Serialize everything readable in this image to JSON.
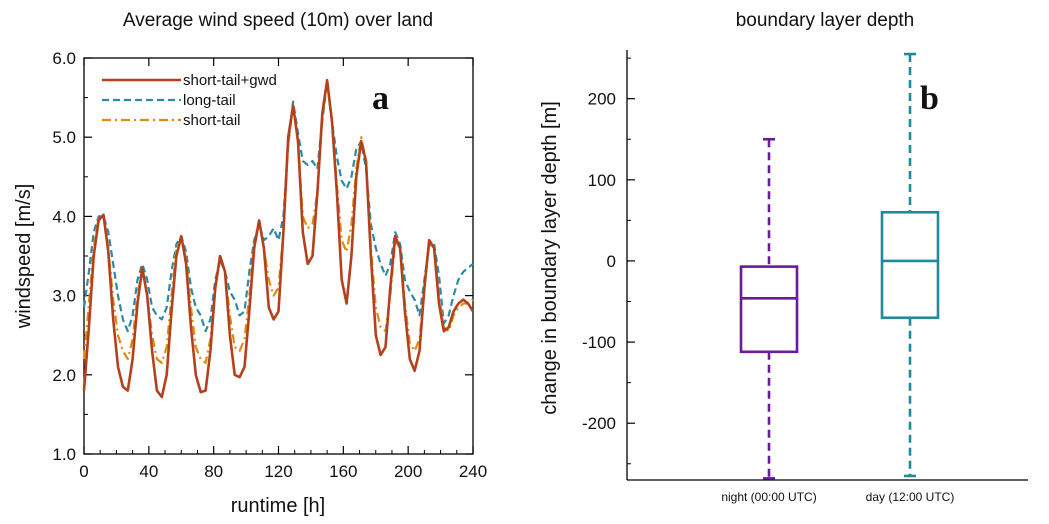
{
  "chart_data": [
    {
      "type": "line",
      "panel_label": "a",
      "title": "Average wind speed (10m) over land",
      "xlabel": "runtime [h]",
      "ylabel": "windspeed [m/s]",
      "xlim": [
        0,
        240
      ],
      "ylim": [
        1.0,
        6.0
      ],
      "xticks": [
        0,
        40,
        80,
        120,
        160,
        200,
        240
      ],
      "yticks": [
        1.0,
        2.0,
        3.0,
        4.0,
        5.0,
        6.0
      ],
      "ytick_labels": [
        "1.0",
        "2.0",
        "3.0",
        "4.0",
        "5.0",
        "6.0"
      ],
      "legend_position": "top-left",
      "series": [
        {
          "name": "short-tail+gwd",
          "color": "#b5401c",
          "style": "solid",
          "x": [
            0,
            3,
            6,
            9,
            12,
            15,
            18,
            21,
            24,
            27,
            30,
            33,
            36,
            39,
            42,
            45,
            48,
            51,
            54,
            57,
            60,
            63,
            66,
            69,
            72,
            75,
            78,
            81,
            84,
            87,
            90,
            93,
            96,
            99,
            102,
            105,
            108,
            111,
            114,
            117,
            120,
            123,
            126,
            129,
            132,
            135,
            138,
            141,
            144,
            147,
            150,
            153,
            156,
            159,
            162,
            165,
            168,
            171,
            174,
            177,
            180,
            183,
            186,
            189,
            192,
            195,
            198,
            201,
            204,
            207,
            210,
            213,
            216,
            219,
            222,
            225,
            228,
            231,
            234,
            237,
            240
          ],
          "y": [
            1.8,
            2.6,
            3.5,
            3.95,
            4.02,
            3.55,
            2.7,
            2.1,
            1.85,
            1.8,
            2.2,
            2.9,
            3.35,
            3.0,
            2.3,
            1.8,
            1.72,
            2.0,
            2.8,
            3.5,
            3.75,
            3.4,
            2.6,
            2.0,
            1.78,
            1.8,
            2.3,
            3.1,
            3.5,
            3.3,
            2.5,
            2.0,
            1.97,
            2.1,
            2.8,
            3.6,
            3.95,
            3.6,
            2.85,
            2.7,
            2.8,
            3.8,
            5.0,
            5.4,
            4.95,
            3.8,
            3.4,
            3.5,
            4.3,
            5.3,
            5.72,
            5.2,
            4.3,
            3.2,
            2.9,
            3.5,
            4.5,
            4.95,
            4.7,
            3.5,
            2.5,
            2.25,
            2.35,
            3.1,
            3.75,
            3.6,
            2.8,
            2.2,
            2.05,
            2.3,
            3.1,
            3.7,
            3.6,
            2.9,
            2.55,
            2.6,
            2.8,
            2.9,
            2.95,
            2.9,
            2.8
          ]
        },
        {
          "name": "long-tail",
          "color": "#2a8aa8",
          "style": "dashed",
          "x": [
            0,
            3,
            6,
            9,
            12,
            15,
            18,
            21,
            24,
            27,
            30,
            33,
            36,
            39,
            42,
            45,
            48,
            51,
            54,
            57,
            60,
            63,
            66,
            69,
            72,
            75,
            78,
            81,
            84,
            87,
            90,
            93,
            96,
            99,
            102,
            105,
            108,
            111,
            114,
            117,
            120,
            123,
            126,
            129,
            132,
            135,
            138,
            141,
            144,
            147,
            150,
            153,
            156,
            159,
            162,
            165,
            168,
            171,
            174,
            177,
            180,
            183,
            186,
            189,
            192,
            195,
            198,
            201,
            204,
            207,
            210,
            213,
            216,
            219,
            222,
            225,
            228,
            231,
            234,
            237,
            240
          ],
          "y": [
            2.85,
            3.3,
            3.8,
            4.0,
            4.0,
            3.8,
            3.4,
            3.0,
            2.7,
            2.55,
            2.75,
            3.2,
            3.4,
            3.2,
            2.85,
            2.75,
            2.7,
            2.85,
            3.3,
            3.65,
            3.75,
            3.55,
            3.1,
            2.85,
            2.75,
            2.55,
            2.7,
            3.2,
            3.45,
            3.3,
            3.05,
            2.95,
            2.75,
            2.8,
            3.3,
            3.7,
            3.9,
            3.7,
            3.75,
            3.85,
            3.7,
            4.0,
            4.9,
            5.45,
            5.05,
            4.7,
            4.65,
            4.7,
            4.6,
            5.2,
            5.7,
            5.2,
            4.75,
            4.45,
            4.35,
            4.5,
            4.85,
            4.95,
            4.6,
            3.9,
            3.6,
            3.4,
            3.25,
            3.4,
            3.8,
            3.65,
            3.2,
            3.05,
            2.95,
            2.75,
            3.2,
            3.65,
            3.65,
            3.25,
            2.65,
            2.75,
            3.0,
            3.2,
            3.3,
            3.35,
            3.4
          ]
        },
        {
          "name": "short-tail",
          "color": "#e08a10",
          "style": "dashdot",
          "x": [
            0,
            3,
            6,
            9,
            12,
            15,
            18,
            21,
            24,
            27,
            30,
            33,
            36,
            39,
            42,
            45,
            48,
            51,
            54,
            57,
            60,
            63,
            66,
            69,
            72,
            75,
            78,
            81,
            84,
            87,
            90,
            93,
            96,
            99,
            102,
            105,
            108,
            111,
            114,
            117,
            120,
            123,
            126,
            129,
            132,
            135,
            138,
            141,
            144,
            147,
            150,
            153,
            156,
            159,
            162,
            165,
            168,
            171,
            174,
            177,
            180,
            183,
            186,
            189,
            192,
            195,
            198,
            201,
            204,
            207,
            210,
            213,
            216,
            219,
            222,
            225,
            228,
            231,
            234,
            237,
            240
          ],
          "y": [
            2.2,
            2.9,
            3.6,
            3.98,
            4.0,
            3.6,
            2.95,
            2.5,
            2.3,
            2.2,
            2.45,
            3.0,
            3.35,
            3.0,
            2.5,
            2.2,
            2.15,
            2.35,
            3.0,
            3.6,
            3.75,
            3.45,
            2.85,
            2.35,
            2.2,
            2.15,
            2.45,
            3.1,
            3.5,
            3.3,
            2.75,
            2.35,
            2.3,
            2.45,
            3.0,
            3.65,
            3.95,
            3.6,
            3.2,
            3.0,
            3.1,
            3.8,
            4.9,
            5.4,
            4.95,
            4.0,
            3.85,
            3.9,
            4.3,
            5.25,
            5.7,
            5.2,
            4.4,
            3.7,
            3.55,
            3.9,
            4.6,
            5.0,
            4.7,
            3.6,
            2.85,
            2.6,
            2.55,
            3.0,
            3.7,
            3.6,
            2.9,
            2.4,
            2.3,
            2.45,
            3.1,
            3.65,
            3.6,
            3.0,
            2.6,
            2.55,
            2.75,
            2.85,
            2.9,
            2.9,
            2.95
          ]
        }
      ]
    },
    {
      "type": "box",
      "panel_label": "b",
      "title": "boundary layer depth",
      "xlabel": "",
      "ylabel": "change in boundary layer depth [m]",
      "ylim": [
        -270,
        260
      ],
      "yticks": [
        -200,
        -100,
        0,
        100,
        200
      ],
      "categories": [
        "night (00:00 UTC)",
        "day (12:00 UTC)"
      ],
      "boxes": [
        {
          "label": "night (00:00 UTC)",
          "color": "#6a1b9a",
          "min": -268,
          "q1": -112,
          "median": -46,
          "q3": -7,
          "max": 150
        },
        {
          "label": "day (12:00 UTC)",
          "color": "#1e8a9a",
          "min": -265,
          "q1": -70,
          "median": 0,
          "q3": 60,
          "max": 255
        }
      ]
    }
  ]
}
